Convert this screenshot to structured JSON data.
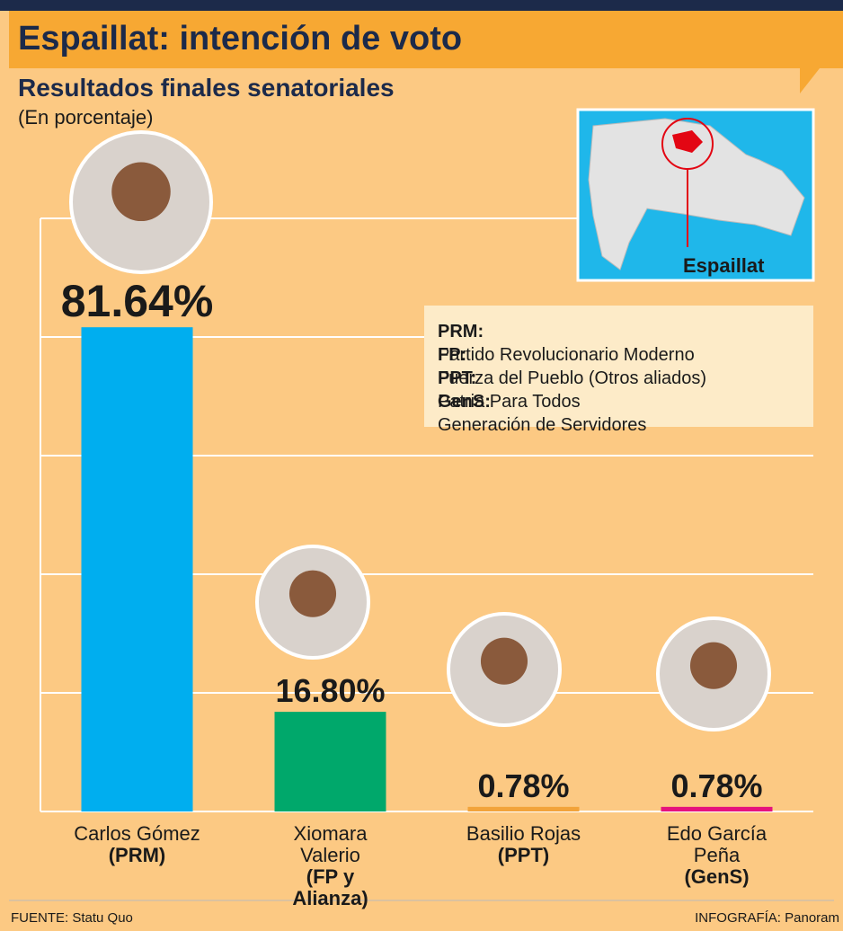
{
  "chart_data": {
    "type": "bar",
    "title": "Espaillat: intención de voto",
    "subtitle": "Resultados finales senatoriales",
    "unit_note": "(En porcentaje)",
    "categories": [
      "Carlos Gómez",
      "Xiomara Valerio",
      "Basilio Rojas",
      "Edo García Peña"
    ],
    "parties": [
      "(PRM)",
      "(FP y Alianza)",
      "(PPT)",
      "(GenS)"
    ],
    "values": [
      81.64,
      16.8,
      0.78,
      0.78
    ],
    "value_labels": [
      "81.64%",
      "16.80%",
      "0.78%",
      "0.78%"
    ],
    "colors": [
      "#00aeef",
      "#00a86b",
      "#f2a33a",
      "#e5127d"
    ],
    "ylim": [
      0,
      100
    ],
    "yticks": [
      0,
      20,
      40,
      60,
      80,
      100
    ],
    "grid": true,
    "definitions": [
      {
        "abbr": "PRM:",
        "text": "Partido Revolucionario Moderno"
      },
      {
        "abbr": "FP:",
        "text": "Fuerza del Pueblo (Otros aliados)"
      },
      {
        "abbr": "PPT:",
        "text": "Patria Para Todos"
      },
      {
        "abbr": "GenS:",
        "text": "Generación de Servidores"
      }
    ],
    "map_label": "Espaillat",
    "source": "FUENTE: Statu Quo",
    "credit": "INFOGRAFÍA: Panoram"
  }
}
